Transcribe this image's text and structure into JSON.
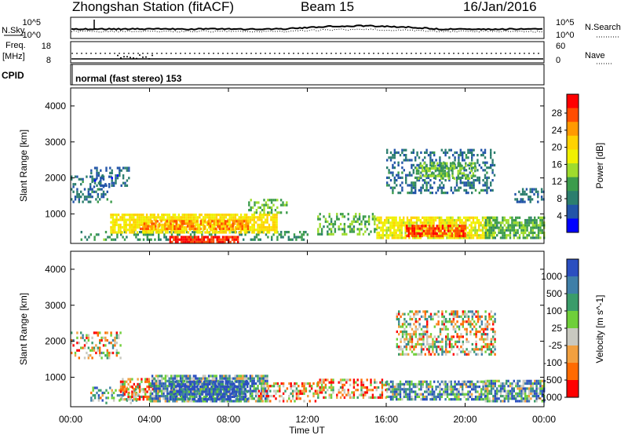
{
  "header": {
    "station": "Zhongshan Station (fitACF)",
    "beam": "Beam 15",
    "date": "16/Jan/2016"
  },
  "strips": {
    "nsky_label": "N.Sky",
    "nsearch_label": "N.Search",
    "noise_top_tick": "10^5",
    "noise_bottom_tick": "10^0",
    "freq_label": "Freq.",
    "freq_unit": "[MHz]",
    "freq_ticks": [
      "18",
      "8"
    ],
    "nave_label": "Nave",
    "nave_ticks": [
      "60",
      "0"
    ],
    "cpid_label": "CPID",
    "cpid_text": "normal (fast stereo) 153"
  },
  "colors": {
    "noise_line": "#000000",
    "background_scatter": "#c9c9c0"
  },
  "chart_data": [
    {
      "type": "heatmap",
      "title": "",
      "xlabel": "",
      "ylabel": "Slant Range [km]",
      "x_range_hours": [
        0,
        24
      ],
      "ylim": [
        180,
        4500
      ],
      "x_ticks": [
        "00:00",
        "04:00",
        "08:00",
        "12:00",
        "16:00",
        "20:00",
        "00:00"
      ],
      "y_ticks": [
        "1000",
        "2000",
        "3000",
        "4000"
      ],
      "colorbar": {
        "label": "Power [dB]",
        "range": [
          0,
          32
        ],
        "tick_labels": [
          "28",
          "24",
          "20",
          "16",
          "12",
          "8",
          "4"
        ],
        "colors": [
          "#ff0000",
          "#ff4d00",
          "#ff9a00",
          "#ffd200",
          "#f0f000",
          "#9fdc2d",
          "#3c9c4c",
          "#2c7e6e",
          "#2254a8",
          "#0000ff"
        ]
      },
      "regions": [
        {
          "start_h": 0.0,
          "end_h": 2.1,
          "range_lo_km": 1300,
          "range_hi_km": 2000,
          "value": 7,
          "density": 0.4
        },
        {
          "start_h": 1.0,
          "end_h": 3.0,
          "range_lo_km": 1750,
          "range_hi_km": 2250,
          "value": 6,
          "density": 0.35
        },
        {
          "start_h": 0.5,
          "end_h": 12.0,
          "range_lo_km": 250,
          "range_hi_km": 500,
          "value": 10,
          "density": 0.35
        },
        {
          "start_h": 2.0,
          "end_h": 10.5,
          "range_lo_km": 450,
          "range_hi_km": 950,
          "value": 19,
          "density": 0.8
        },
        {
          "start_h": 3.5,
          "end_h": 9.0,
          "range_lo_km": 550,
          "range_hi_km": 800,
          "value": 25,
          "density": 0.6
        },
        {
          "start_h": 5.0,
          "end_h": 8.5,
          "range_lo_km": 180,
          "range_hi_km": 330,
          "value": 29,
          "density": 0.9
        },
        {
          "start_h": 9.0,
          "end_h": 11.0,
          "range_lo_km": 1000,
          "range_hi_km": 1350,
          "value": 13,
          "density": 0.4
        },
        {
          "start_h": 12.5,
          "end_h": 15.5,
          "range_lo_km": 400,
          "range_hi_km": 1000,
          "value": 12,
          "density": 0.45
        },
        {
          "start_h": 15.5,
          "end_h": 21.5,
          "range_lo_km": 300,
          "range_hi_km": 900,
          "value": 18,
          "density": 0.8
        },
        {
          "start_h": 17.0,
          "end_h": 20.0,
          "range_lo_km": 350,
          "range_hi_km": 650,
          "value": 28,
          "density": 0.75
        },
        {
          "start_h": 16.0,
          "end_h": 21.5,
          "range_lo_km": 1550,
          "range_hi_km": 2800,
          "value": 7,
          "density": 0.35
        },
        {
          "start_h": 17.5,
          "end_h": 20.5,
          "range_lo_km": 1950,
          "range_hi_km": 2400,
          "value": 13,
          "density": 0.55
        },
        {
          "start_h": 21.0,
          "end_h": 24.0,
          "range_lo_km": 300,
          "range_hi_km": 900,
          "value": 12,
          "density": 0.7
        },
        {
          "start_h": 22.5,
          "end_h": 24.0,
          "range_lo_km": 1300,
          "range_hi_km": 1700,
          "value": 7,
          "density": 0.45
        }
      ]
    },
    {
      "type": "heatmap",
      "title": "",
      "xlabel": "Time UT",
      "ylabel": "Slant Range [km]",
      "x_range_hours": [
        0,
        24
      ],
      "ylim": [
        180,
        4500
      ],
      "x_ticks": [
        "00:00",
        "04:00",
        "08:00",
        "12:00",
        "16:00",
        "20:00",
        "00:00"
      ],
      "y_ticks": [
        "1000",
        "2000",
        "3000",
        "4000"
      ],
      "colorbar": {
        "label": "Velocity [m s^-1]",
        "tick_labels": [
          "1000",
          "500",
          "100",
          "25",
          "-25",
          "-100",
          "-500",
          "-1000"
        ],
        "colors": [
          "#2b4fc0",
          "#3f7fa8",
          "#3a9c6a",
          "#6fcf3a",
          "#c9c9c0",
          "#f2a040",
          "#ff6a00",
          "#ff0000"
        ]
      },
      "regions": [
        {
          "start_h": 0.0,
          "end_h": 2.5,
          "range_lo_km": 1500,
          "range_hi_km": 2200,
          "value": 4,
          "density": 0.4
        },
        {
          "start_h": 1.0,
          "end_h": 3.5,
          "range_lo_km": 250,
          "range_hi_km": 700,
          "value": 3,
          "density": 0.4
        },
        {
          "start_h": 2.5,
          "end_h": 4.5,
          "range_lo_km": 350,
          "range_hi_km": 950,
          "value": 5,
          "density": 0.6
        },
        {
          "start_h": 4.0,
          "end_h": 10.0,
          "range_lo_km": 300,
          "range_hi_km": 1000,
          "value": 2,
          "density": 0.8
        },
        {
          "start_h": 5.0,
          "end_h": 9.0,
          "range_lo_km": 350,
          "range_hi_km": 850,
          "value": 0,
          "density": 0.75
        },
        {
          "start_h": 9.5,
          "end_h": 12.5,
          "range_lo_km": 300,
          "range_hi_km": 800,
          "value": 5,
          "density": 0.5
        },
        {
          "start_h": 12.5,
          "end_h": 16.0,
          "range_lo_km": 400,
          "range_hi_km": 950,
          "value": 5,
          "density": 0.45
        },
        {
          "start_h": 16.0,
          "end_h": 21.0,
          "range_lo_km": 350,
          "range_hi_km": 900,
          "value": 2,
          "density": 0.7
        },
        {
          "start_h": 16.5,
          "end_h": 21.5,
          "range_lo_km": 1600,
          "range_hi_km": 2800,
          "value": 4,
          "density": 0.5
        },
        {
          "start_h": 21.0,
          "end_h": 24.0,
          "range_lo_km": 300,
          "range_hi_km": 900,
          "value": 2,
          "density": 0.75
        }
      ]
    }
  ]
}
